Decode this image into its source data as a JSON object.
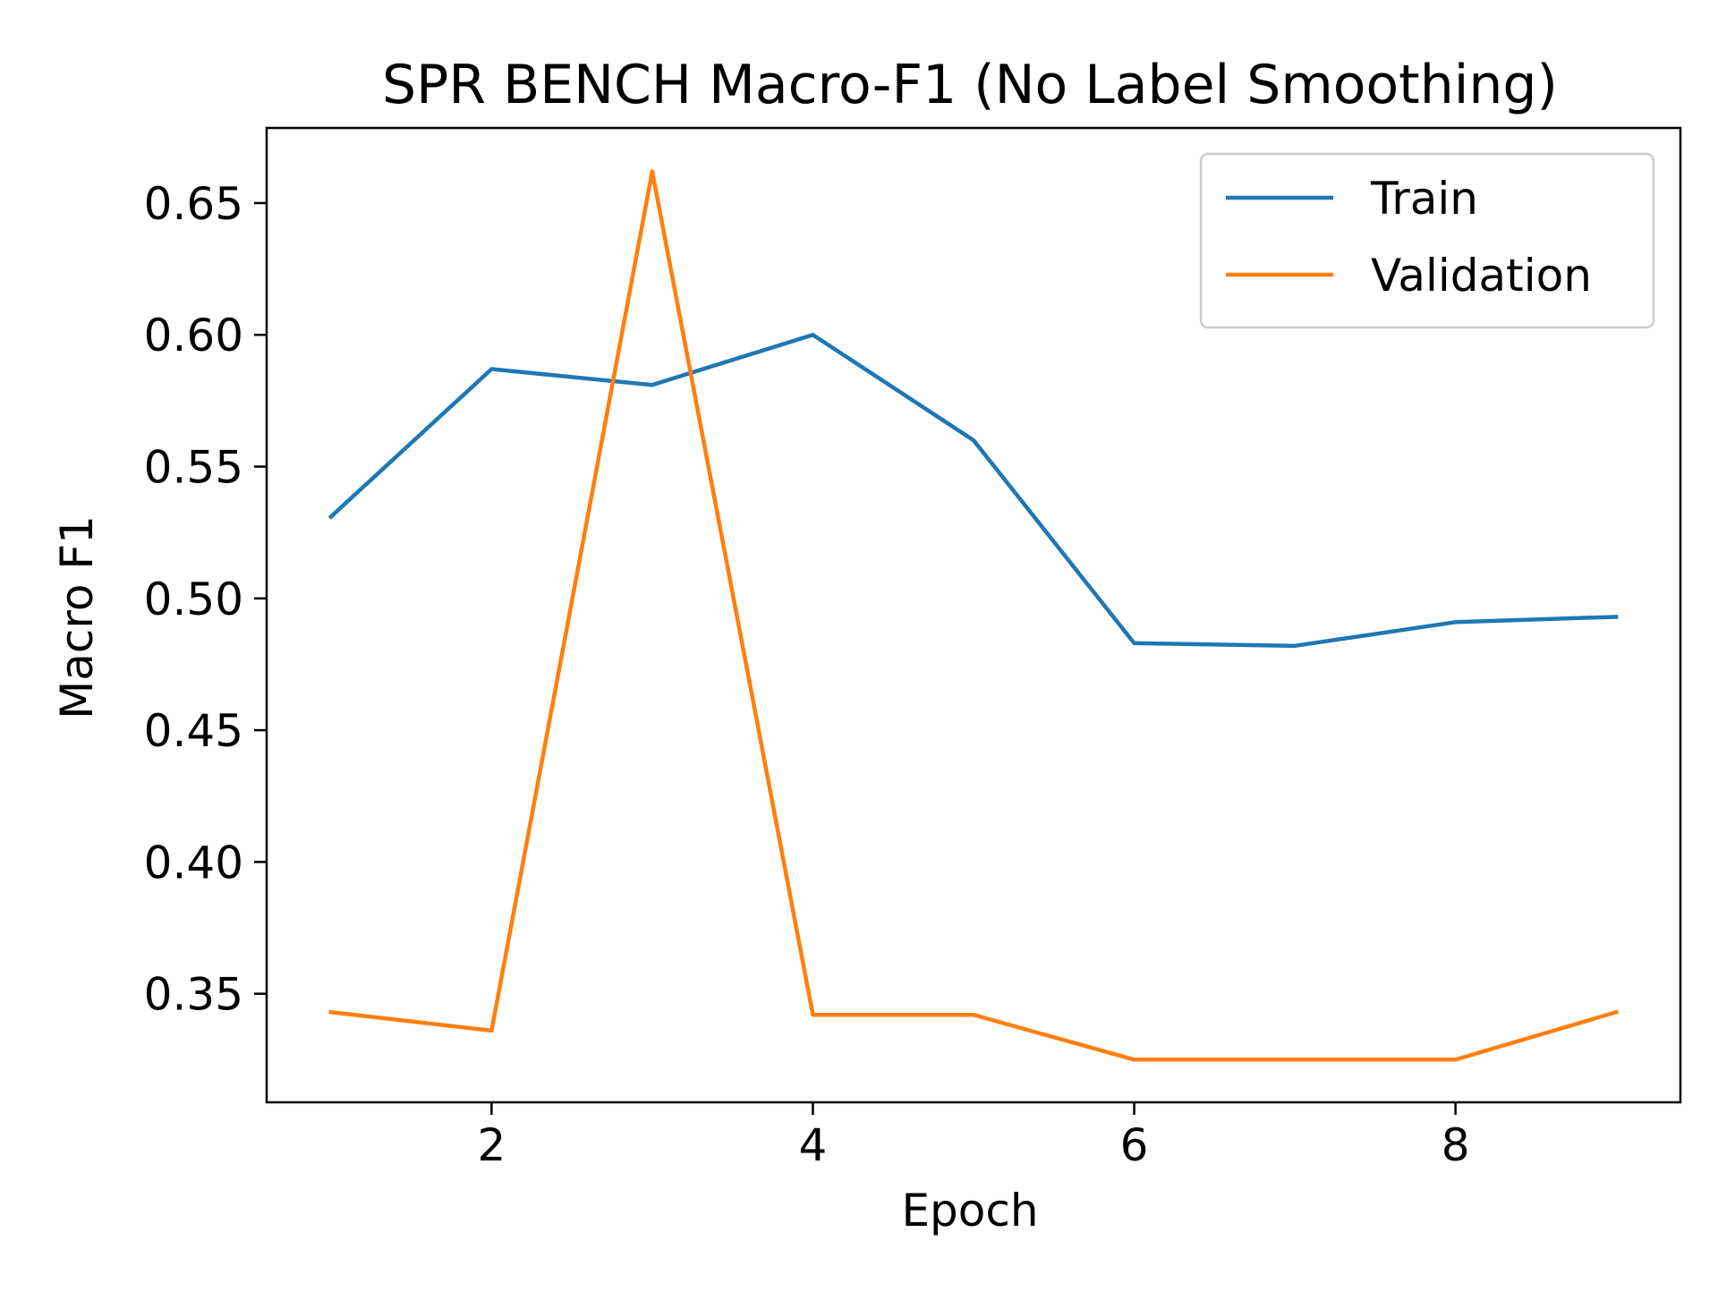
{
  "chart_data": {
    "type": "line",
    "title": "SPR BENCH Macro-F1 (No Label Smoothing)",
    "xlabel": "Epoch",
    "ylabel": "Macro F1",
    "xlim": [
      0.6,
      9.4
    ],
    "ylim": [
      0.3088,
      0.6785
    ],
    "x_ticks": [
      2,
      4,
      6,
      8
    ],
    "x_tick_labels": [
      "2",
      "4",
      "6",
      "8"
    ],
    "y_ticks": [
      0.35,
      0.4,
      0.45,
      0.5,
      0.55,
      0.6,
      0.65
    ],
    "y_tick_labels": [
      "0.35",
      "0.40",
      "0.45",
      "0.50",
      "0.55",
      "0.60",
      "0.65"
    ],
    "grid": false,
    "legend_position": "top-right",
    "x": [
      1,
      2,
      3,
      4,
      5,
      6,
      7,
      8,
      9
    ],
    "series": [
      {
        "name": "Train",
        "color": "#1f77b4",
        "values": [
          0.531,
          0.587,
          0.581,
          0.6,
          0.56,
          0.483,
          0.482,
          0.491,
          0.493
        ]
      },
      {
        "name": "Validation",
        "color": "#ff7f0e",
        "values": [
          0.343,
          0.336,
          0.662,
          0.342,
          0.342,
          0.325,
          0.325,
          0.325,
          0.343
        ]
      }
    ]
  }
}
